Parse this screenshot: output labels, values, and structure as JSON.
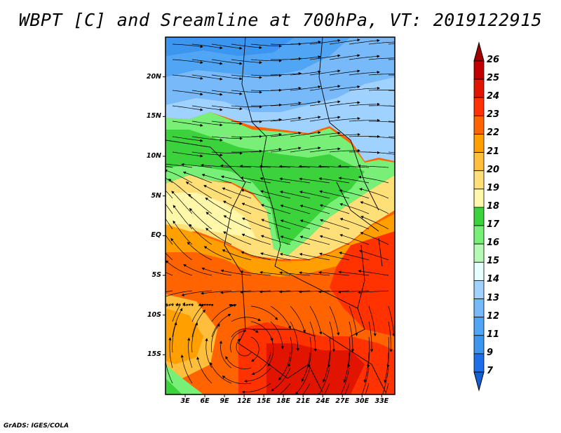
{
  "title": "WBPT [C] and Sreamline at 700hPa, VT: 2019122915",
  "footer": "GrADS: IGES/COLA",
  "map": {
    "lat_labels": [
      "20N",
      "15N",
      "10N",
      "5N",
      "EQ",
      "5S",
      "10S",
      "15S"
    ],
    "lat_values": [
      20,
      15,
      10,
      5,
      0,
      -5,
      -10,
      -15
    ],
    "lon_labels": [
      "3E",
      "6E",
      "9E",
      "12E",
      "15E",
      "18E",
      "21E",
      "24E",
      "27E",
      "30E",
      "33E"
    ],
    "lon_values": [
      3,
      6,
      9,
      12,
      15,
      18,
      21,
      24,
      27,
      30,
      33
    ],
    "extent": {
      "lon": [
        0,
        35
      ],
      "lat": [
        -20,
        25
      ]
    }
  },
  "colorbar": {
    "labels": [
      "26",
      "25",
      "24",
      "23",
      "22",
      "21",
      "20",
      "19",
      "18",
      "17",
      "16",
      "15",
      "14",
      "13",
      "12",
      "11",
      "9",
      "7"
    ],
    "colors": [
      "#a00000",
      "#c00000",
      "#e11400",
      "#ff3200",
      "#ff6400",
      "#ffa000",
      "#ffbe3c",
      "#ffe078",
      "#fff8aa",
      "#3cd23c",
      "#78f078",
      "#b4fab4",
      "#e6ffff",
      "#a0d2ff",
      "#78b9fa",
      "#50a5f5",
      "#3c96f0",
      "#1e6eeb",
      "#1460d2"
    ]
  }
}
